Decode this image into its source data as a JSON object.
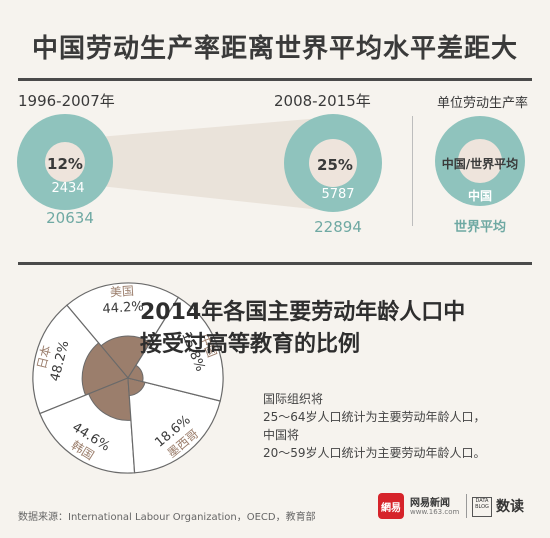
{
  "title": "中国劳动生产率距离世界平均水平差距大",
  "productivity": {
    "periods": [
      {
        "label": "1996-2007年",
        "ratio": "12%",
        "china": "2434",
        "world": "20634"
      },
      {
        "label": "2008-2015年",
        "ratio": "25%",
        "china": "5787",
        "world": "22894"
      }
    ],
    "legend": {
      "title": "单位劳动生产率",
      "ratio_label": "中国/世界平均",
      "china_label": "中国",
      "world_label": "世界平均"
    }
  },
  "section2": {
    "title_line1": "2014年各国主要劳动年龄人口中",
    "title_line2": "接受过高等教育的比例",
    "notes": [
      "国际组织将",
      "25～64岁人口统计为主要劳动年龄人口，",
      "中国将",
      "20～59岁人口统计为主要劳动年龄人口。"
    ]
  },
  "chart_data": [
    {
      "type": "bar",
      "title": "中国劳动生产率距离世界平均水平差距大",
      "categories": [
        "1996-2007年",
        "2008-2015年"
      ],
      "series": [
        {
          "name": "中国",
          "values": [
            2434,
            5787
          ]
        },
        {
          "name": "世界平均",
          "values": [
            20634,
            22894
          ]
        },
        {
          "name": "中国/世界平均",
          "values": [
            12,
            25
          ]
        }
      ]
    },
    {
      "type": "pie",
      "title": "2014年各国主要劳动年龄人口中接受过高等教育的比例",
      "categories": [
        "美国",
        "日本",
        "韩国",
        "墨西哥",
        "中国"
      ],
      "values": [
        44.2,
        48.2,
        44.6,
        18.6,
        15.8
      ],
      "value_labels": [
        "44.2%",
        "48.2%",
        "44.6%",
        "18.6%",
        "15.8%"
      ]
    }
  ],
  "source": "数据来源：International Labour Organization，OECD，教育部",
  "branding": {
    "logo_mark": "網易",
    "logo_name": "网易新闻",
    "logo_url": "www.163.com",
    "mini_logo": "DATA BLOG",
    "sub_brand": "数读"
  },
  "colors": {
    "world": "#8fc3bd",
    "ratio_band": "#e8dfd6",
    "china_circle": "#eee4dc",
    "wedge_fill": "#9b7e6c",
    "text_dark": "#3a3a3a"
  }
}
